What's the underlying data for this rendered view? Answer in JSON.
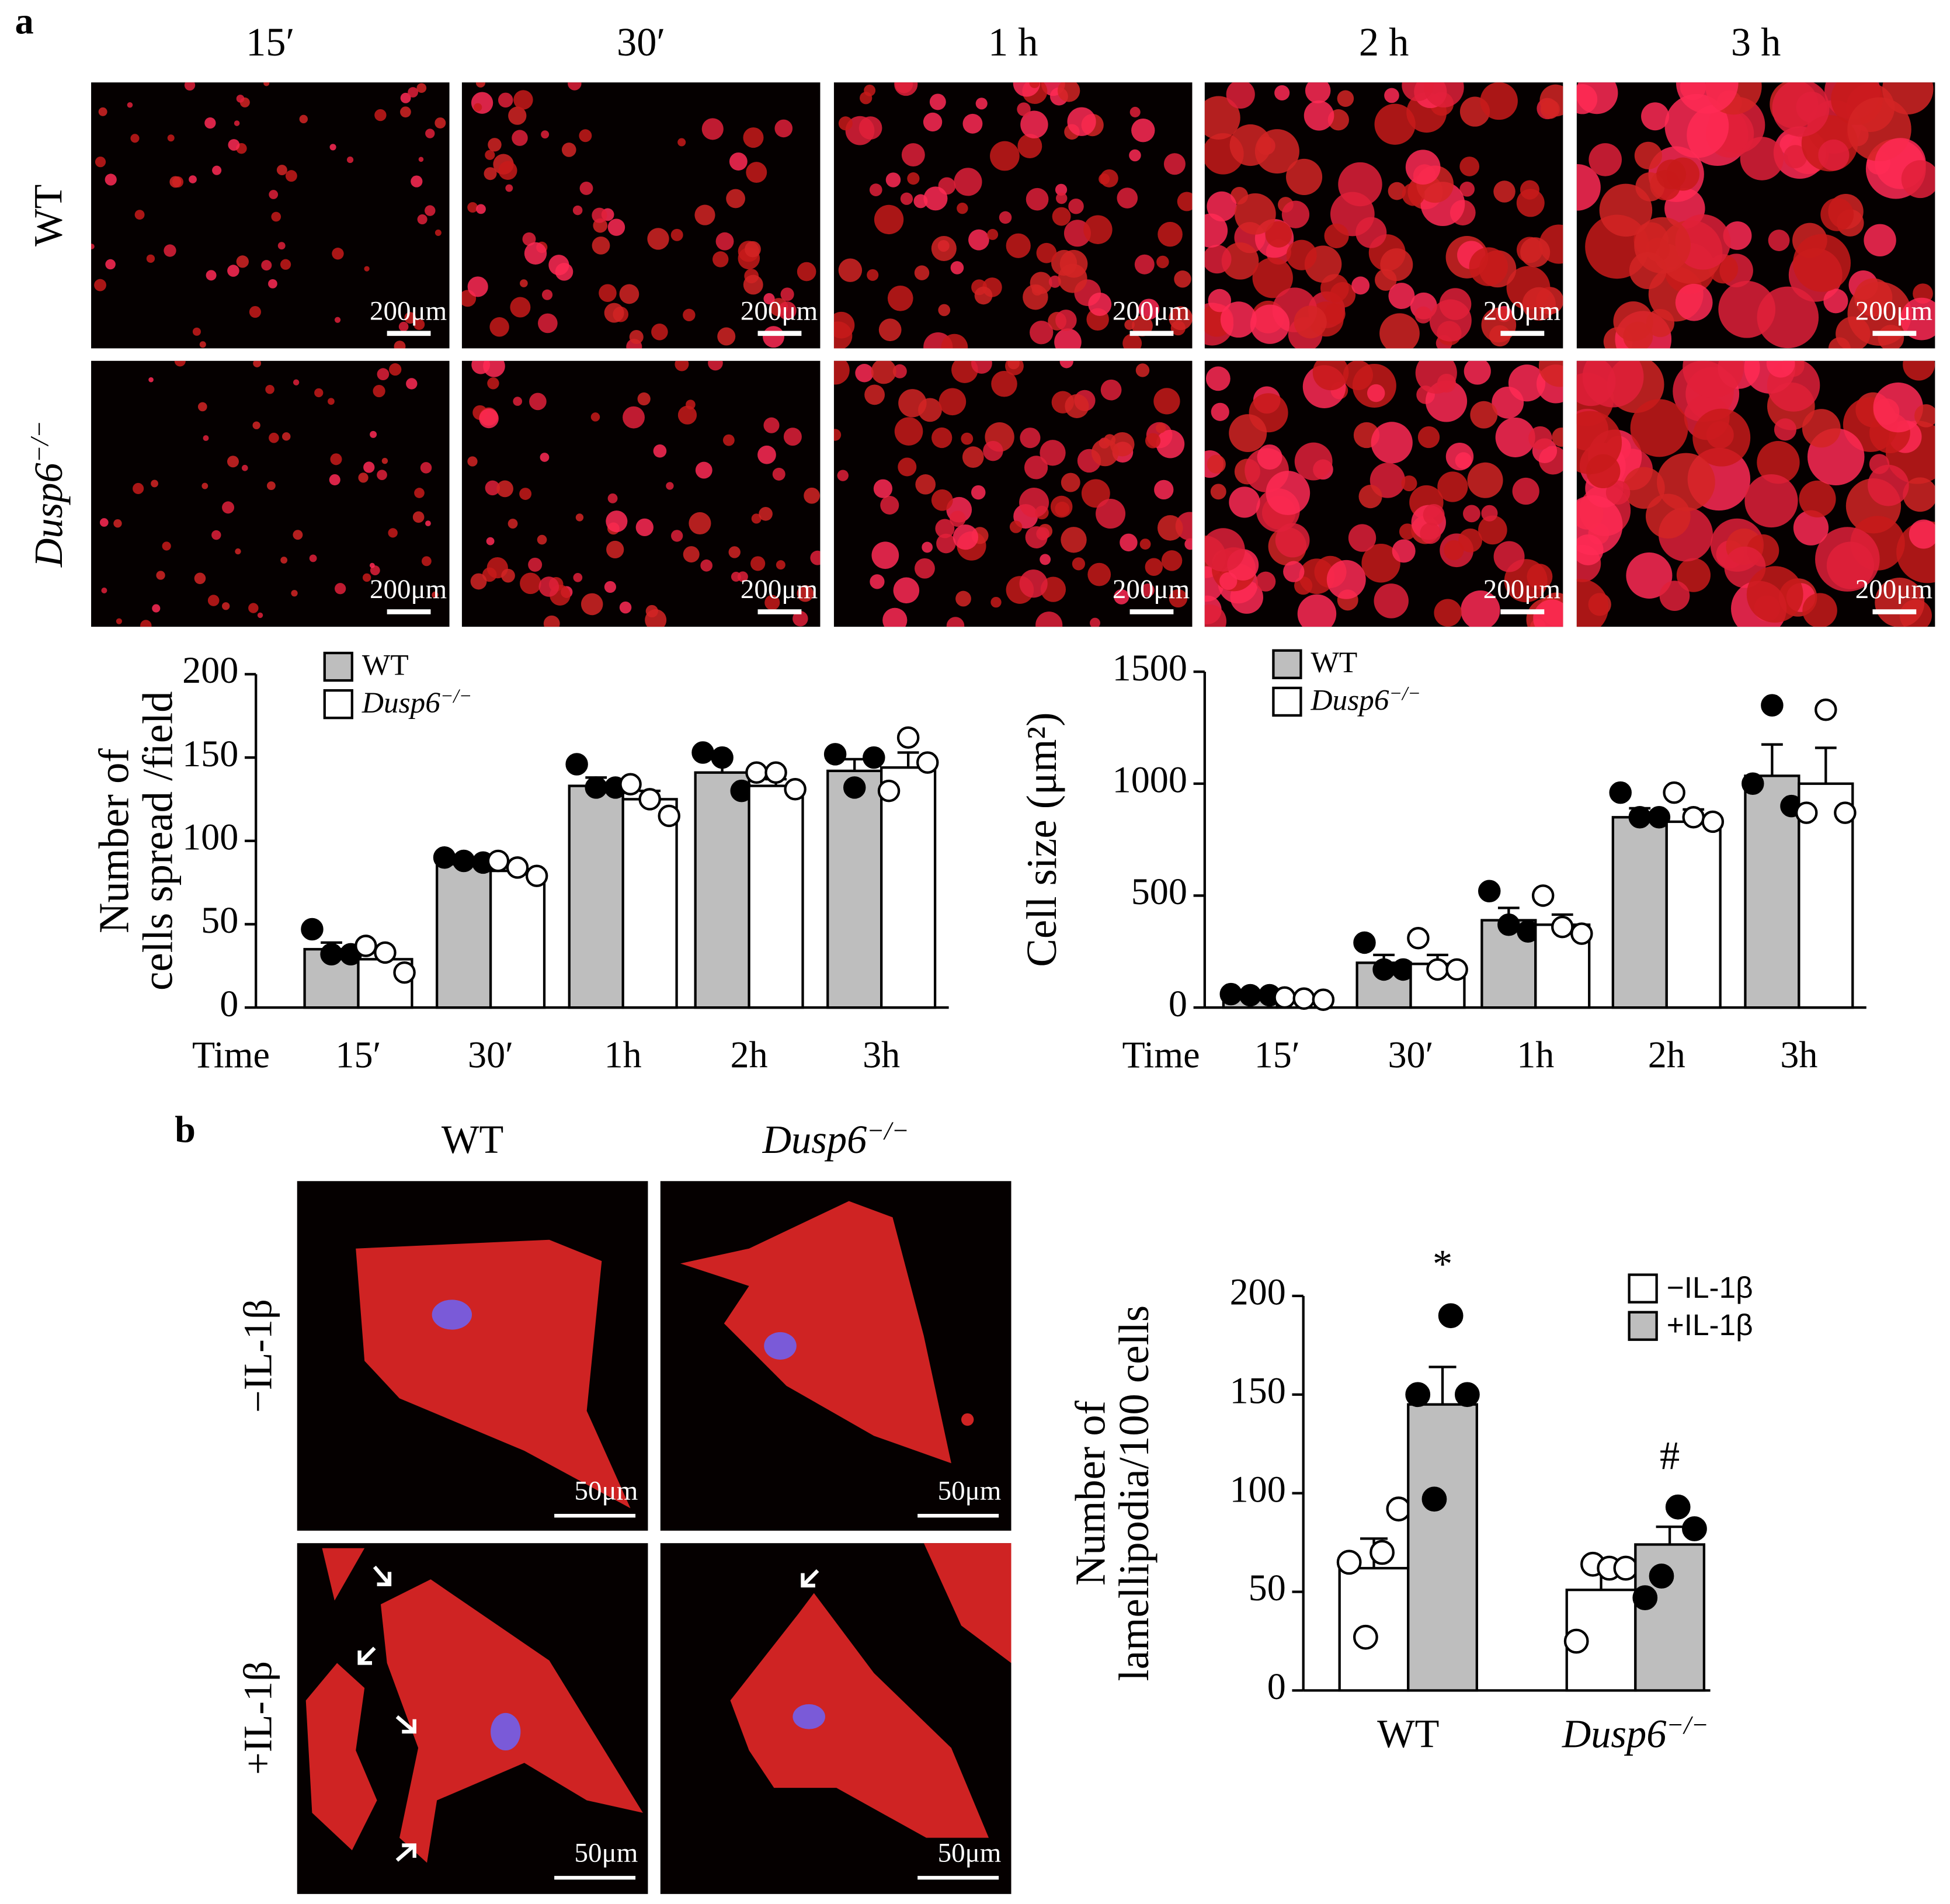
{
  "figure": {
    "panel_a": {
      "label": "a",
      "columns": [
        "15′",
        "30′",
        "1 h",
        "2 h",
        "3 h"
      ],
      "rows": [
        "WT",
        "Dusp6−/−"
      ],
      "scale_bar": "200μm"
    },
    "panel_b": {
      "label": "b",
      "columns": [
        "WT",
        "Dusp6−/−"
      ],
      "rows": [
        "−IL-1β",
        "+IL-1β"
      ],
      "scale_bar": "50μm"
    }
  },
  "chart_data": [
    {
      "type": "bar",
      "ylabel": [
        "Number of",
        "cells spread /field"
      ],
      "xlabel": "Time",
      "categories": [
        "15′",
        "30′",
        "1h",
        "2h",
        "3h"
      ],
      "ylim": [
        0,
        200
      ],
      "yticks": [
        0,
        50,
        100,
        150,
        200
      ],
      "legend": "upper left",
      "series": [
        {
          "name": "WT",
          "color": "#bebebe",
          "point_color": "#000000",
          "values": [
            35,
            86,
            133,
            141,
            142
          ],
          "errors": [
            4,
            2,
            5,
            9,
            7
          ],
          "points": [
            [
              47,
              32,
              32
            ],
            [
              90,
              88,
              87
            ],
            [
              146,
              132,
              132
            ],
            [
              153,
              150,
              130
            ],
            [
              152,
              132,
              150
            ]
          ]
        },
        {
          "name": "Dusp6−/−",
          "color": "#ffffff",
          "point_color": "#ffffff",
          "values": [
            29,
            82,
            125,
            133,
            144
          ],
          "errors": [
            4,
            3,
            5,
            4,
            9
          ],
          "points": [
            [
              37,
              33,
              21
            ],
            [
              88,
              84,
              79
            ],
            [
              134,
              125,
              115
            ],
            [
              141,
              141,
              131
            ],
            [
              130,
              162,
              147
            ]
          ]
        }
      ]
    },
    {
      "type": "bar",
      "ylabel": [
        "Cell size (μm²)"
      ],
      "xlabel": "Time",
      "categories": [
        "15′",
        "30′",
        "1h",
        "2h",
        "3h"
      ],
      "ylim": [
        0,
        1500
      ],
      "yticks": [
        0,
        500,
        1000,
        1500
      ],
      "legend": "upper left",
      "series": [
        {
          "name": "WT",
          "color": "#bebebe",
          "point_color": "#000000",
          "values": [
            45,
            200,
            390,
            850,
            1035
          ],
          "errors": [
            5,
            35,
            55,
            40,
            140
          ],
          "points": [
            [
              60,
              55,
              55
            ],
            [
              290,
              170,
              170
            ],
            [
              520,
              370,
              340
            ],
            [
              960,
              850,
              850
            ],
            [
              1000,
              1350,
              900
            ]
          ]
        },
        {
          "name": "Dusp6−/−",
          "color": "#ffffff",
          "point_color": "#ffffff",
          "values": [
            40,
            195,
            370,
            830,
            1000
          ],
          "errors": [
            5,
            40,
            45,
            55,
            160
          ],
          "points": [
            [
              45,
              40,
              35
            ],
            [
              310,
              170,
              170
            ],
            [
              500,
              360,
              330
            ],
            [
              960,
              850,
              830
            ],
            [
              870,
              1330,
              870
            ]
          ]
        }
      ]
    },
    {
      "type": "bar",
      "ylabel": [
        "Number of",
        "lamellipodia/100 cells"
      ],
      "categories": [
        "WT",
        "Dusp6−/−"
      ],
      "ylim": [
        0,
        200
      ],
      "yticks": [
        0,
        50,
        100,
        150,
        200
      ],
      "legend": "upper right",
      "annotations": [
        "*",
        "#"
      ],
      "series": [
        {
          "name": "−IL-1β",
          "color": "#ffffff",
          "point_color": "#ffffff",
          "values": [
            62,
            51
          ],
          "errors": [
            15,
            9
          ],
          "points": [
            [
              65,
              27,
              70,
              92
            ],
            [
              25,
              64,
              62,
              62
            ]
          ]
        },
        {
          "name": "+IL-1β",
          "color": "#bebebe",
          "point_color": "#000000",
          "values": [
            145,
            74
          ],
          "errors": [
            19,
            9
          ],
          "points": [
            [
              150,
              97,
              190,
              150
            ],
            [
              47,
              58,
              93,
              82
            ]
          ]
        }
      ]
    }
  ]
}
